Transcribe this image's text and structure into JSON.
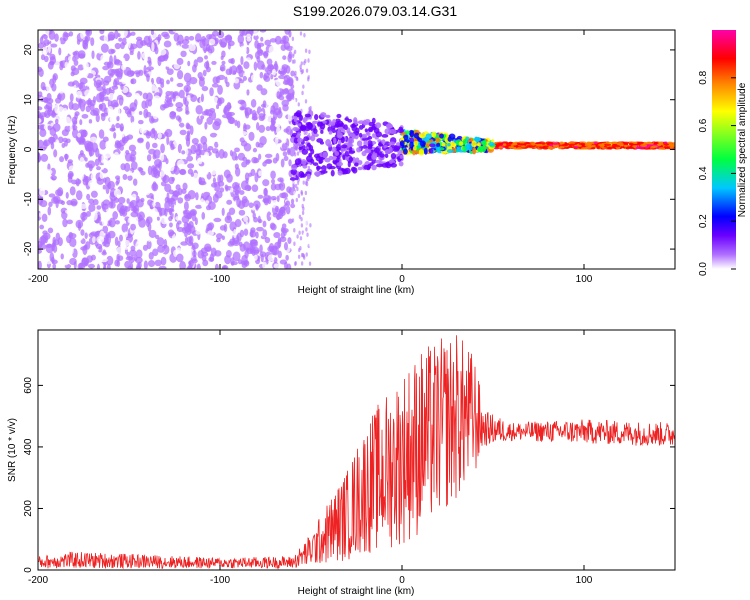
{
  "figure": {
    "title": "S199.2026.079.03.14.G31"
  },
  "chart_data": [
    {
      "type": "heatmap",
      "xlabel": "Height of straight line (km)",
      "ylabel": "Frequency (Hz)",
      "xlim": [
        -200,
        150
      ],
      "ylim": [
        -24,
        24
      ],
      "xticks": [
        -200,
        -100,
        0,
        100
      ],
      "yticks": [
        -20,
        -10,
        0,
        10,
        20
      ],
      "colorbar": {
        "label": "Normalized spectral amplitude",
        "range": [
          0,
          1
        ],
        "ticks": [
          0.0,
          0.2,
          0.4,
          0.6,
          0.8
        ],
        "colormap": [
          "#ffffff",
          "#b070ff",
          "#6a00ff",
          "#0000ff",
          "#00c8ff",
          "#00ff40",
          "#ffff00",
          "#ff8000",
          "#ff0000",
          "#ff00aa"
        ]
      },
      "description_regions": [
        {
          "x_range": [
            -200,
            -60
          ],
          "freq_range": [
            -24,
            24
          ],
          "amplitude": "low, noise across all frequencies"
        },
        {
          "x_range": [
            -60,
            0
          ],
          "freq_range": [
            -6,
            8
          ],
          "amplitude": "low-medium"
        },
        {
          "x_range": [
            0,
            50
          ],
          "freq_range": [
            0,
            3
          ],
          "amplitude": "medium-high"
        },
        {
          "x_range": [
            50,
            150
          ],
          "freq_range": [
            0.5,
            1.5
          ],
          "amplitude": "high, narrow line"
        }
      ],
      "grid": false
    },
    {
      "type": "line",
      "xlabel": "Height of straight line (km)",
      "ylabel": "SNR (10 * v/v)",
      "xlim": [
        -200,
        150
      ],
      "ylim": [
        0,
        780
      ],
      "xticks": [
        -200,
        -100,
        0,
        100
      ],
      "yticks": [
        0,
        200,
        400,
        600
      ],
      "color": "#ee2222",
      "envelope": [
        {
          "x": -200,
          "low": 5,
          "high": 45
        },
        {
          "x": -180,
          "low": 5,
          "high": 60
        },
        {
          "x": -100,
          "low": 5,
          "high": 40
        },
        {
          "x": -60,
          "low": 5,
          "high": 45
        },
        {
          "x": -50,
          "low": 10,
          "high": 120
        },
        {
          "x": -40,
          "low": 20,
          "high": 230
        },
        {
          "x": -30,
          "low": 30,
          "high": 330
        },
        {
          "x": -20,
          "low": 50,
          "high": 480
        },
        {
          "x": -10,
          "low": 60,
          "high": 570
        },
        {
          "x": 0,
          "low": 80,
          "high": 650
        },
        {
          "x": 10,
          "low": 110,
          "high": 720
        },
        {
          "x": 20,
          "low": 170,
          "high": 750
        },
        {
          "x": 30,
          "low": 220,
          "high": 780
        },
        {
          "x": 40,
          "low": 300,
          "high": 700
        },
        {
          "x": 45,
          "low": 400,
          "high": 520
        },
        {
          "x": 60,
          "low": 420,
          "high": 480
        },
        {
          "x": 100,
          "low": 410,
          "high": 490
        },
        {
          "x": 150,
          "low": 400,
          "high": 480
        }
      ],
      "grid": false
    }
  ]
}
